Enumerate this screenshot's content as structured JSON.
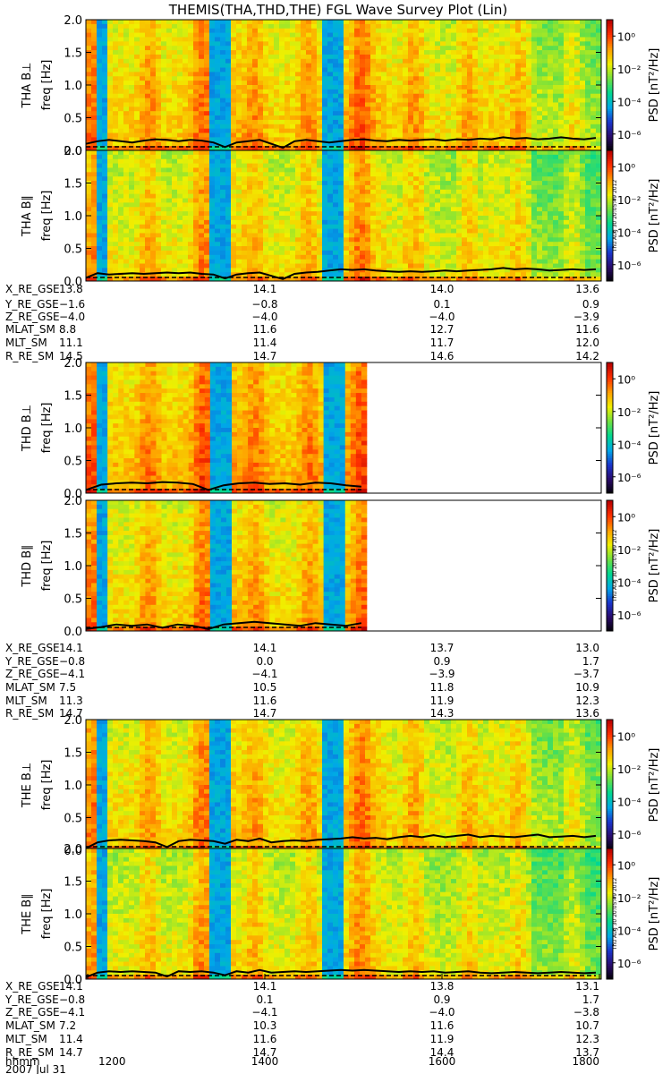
{
  "title": "THEMIS(THA,THD,THE) FGL Wave Survey Plot (Lin)",
  "chart_data": {
    "type": "heatmap",
    "title": "THEMIS(THA,THD,THE) FGL Wave Survey Plot (Lin)",
    "ylim": [
      0,
      2.0
    ],
    "y_ticks": [
      "0.0",
      "0.5",
      "1.0",
      "1.5",
      "2.0"
    ],
    "colorbar": {
      "label": "PSD [nT²/Hz]",
      "ticks": [
        "10⁰",
        "10⁻²",
        "10⁻⁴",
        "10⁻⁶"
      ],
      "tick_exponents": [
        0,
        -2,
        -4,
        -6
      ],
      "range_exponents": [
        -7,
        1
      ],
      "colors": [
        "#000000",
        "#2a0a6a",
        "#1a33cc",
        "#00a8e8",
        "#00d890",
        "#70e040",
        "#f0f000",
        "#ffa000",
        "#ff3000",
        "#b80000"
      ]
    },
    "time_axis": {
      "ticks": [
        "1200",
        "1400",
        "1600",
        "1800"
      ],
      "label": "hhmm",
      "date": "2007 Jul 31"
    },
    "stamp": "Thu Aug 30 20:05:49 2012",
    "panels": [
      {
        "probe": "THA",
        "component": "B⊥",
        "ylabel": "freq [Hz]",
        "name": "THA B⊥",
        "cover": [
          0.0,
          1.0
        ],
        "mean_level": -1.2,
        "trace": [
          0.1,
          0.14,
          0.16,
          0.14,
          0.12,
          0.15,
          0.17,
          0.16,
          0.14,
          0.16,
          0.15,
          0.12,
          0.05,
          0.12,
          0.14,
          0.16,
          0.1,
          0.04,
          0.14,
          0.16,
          0.14,
          0.12,
          0.14,
          0.16,
          0.17,
          0.15,
          0.14,
          0.16,
          0.15,
          0.16,
          0.17,
          0.15,
          0.17,
          0.16,
          0.18,
          0.17,
          0.2,
          0.18,
          0.19,
          0.17,
          0.18,
          0.2,
          0.18,
          0.17,
          0.19
        ]
      },
      {
        "probe": "THA",
        "component": "B∥",
        "ylabel": "freq [Hz]",
        "name": "THA B∥",
        "cover": [
          0.0,
          1.0
        ],
        "mean_level": -1.5,
        "trace": [
          0.05,
          0.12,
          0.1,
          0.11,
          0.12,
          0.11,
          0.12,
          0.13,
          0.12,
          0.13,
          0.11,
          0.1,
          0.04,
          0.1,
          0.12,
          0.13,
          0.08,
          0.03,
          0.11,
          0.13,
          0.14,
          0.16,
          0.18,
          0.17,
          0.18,
          0.16,
          0.15,
          0.14,
          0.15,
          0.14,
          0.15,
          0.16,
          0.15,
          0.16,
          0.17,
          0.18,
          0.2,
          0.18,
          0.19,
          0.18,
          0.16,
          0.17,
          0.18,
          0.17,
          0.18
        ]
      },
      {
        "probe": "THD",
        "component": "B⊥",
        "ylabel": "freq [Hz]",
        "name": "THD B⊥",
        "cover": [
          0.0,
          0.545
        ],
        "mean_level": -1.0,
        "trace": [
          0.05,
          0.13,
          0.15,
          0.16,
          0.15,
          0.17,
          0.16,
          0.14,
          0.05,
          0.12,
          0.15,
          0.16,
          0.14,
          0.15,
          0.13,
          0.16,
          0.15,
          0.12,
          0.1
        ]
      },
      {
        "probe": "THD",
        "component": "B∥",
        "ylabel": "freq [Hz]",
        "name": "THD B∥",
        "cover": [
          0.0,
          0.545
        ],
        "mean_level": -1.3,
        "trace": [
          0.03,
          0.06,
          0.1,
          0.08,
          0.1,
          0.05,
          0.1,
          0.08,
          0.03,
          0.1,
          0.12,
          0.14,
          0.12,
          0.1,
          0.08,
          0.12,
          0.1,
          0.08,
          0.12
        ]
      },
      {
        "probe": "THE",
        "component": "B⊥",
        "ylabel": "freq [Hz]",
        "name": "THE B⊥",
        "cover": [
          0.0,
          1.0
        ],
        "mean_level": -1.3,
        "trace": [
          0.03,
          0.12,
          0.15,
          0.16,
          0.15,
          0.14,
          0.12,
          0.05,
          0.14,
          0.16,
          0.15,
          0.14,
          0.1,
          0.16,
          0.14,
          0.18,
          0.12,
          0.14,
          0.15,
          0.14,
          0.16,
          0.17,
          0.18,
          0.2,
          0.18,
          0.19,
          0.17,
          0.2,
          0.22,
          0.2,
          0.23,
          0.2,
          0.22,
          0.24,
          0.2,
          0.22,
          0.21,
          0.2,
          0.22,
          0.24,
          0.2,
          0.21,
          0.22,
          0.2,
          0.22
        ]
      },
      {
        "probe": "THE",
        "component": "B∥",
        "ylabel": "freq [Hz]",
        "name": "THE B∥",
        "cover": [
          0.0,
          1.0
        ],
        "mean_level": -1.6,
        "trace": [
          0.03,
          0.1,
          0.12,
          0.11,
          0.12,
          0.11,
          0.1,
          0.04,
          0.12,
          0.11,
          0.12,
          0.1,
          0.06,
          0.12,
          0.1,
          0.14,
          0.1,
          0.11,
          0.12,
          0.11,
          0.12,
          0.13,
          0.14,
          0.13,
          0.14,
          0.13,
          0.12,
          0.11,
          0.12,
          0.11,
          0.12,
          0.1,
          0.11,
          0.12,
          0.1,
          0.09,
          0.1,
          0.11,
          0.1,
          0.09,
          0.1,
          0.11,
          0.1,
          0.09,
          0.1
        ]
      }
    ],
    "ephemeris": [
      {
        "probe": "THA",
        "rows": [
          {
            "label": "X_RE_GSE",
            "values": [
              "13.8",
              "14.1",
              "14.0",
              "13.6"
            ]
          },
          {
            "label": "Y_RE_GSE",
            "values": [
              "−1.6",
              "−0.8",
              "0.1",
              "0.9"
            ]
          },
          {
            "label": "Z_RE_GSE",
            "values": [
              "−4.0",
              "−4.0",
              "−4.0",
              "−3.9"
            ]
          },
          {
            "label": "MLAT_SM",
            "values": [
              "8.8",
              "11.6",
              "12.7",
              "11.6"
            ]
          },
          {
            "label": "MLT_SM",
            "values": [
              "11.1",
              "11.4",
              "11.7",
              "12.0"
            ]
          },
          {
            "label": "R_RE_SM",
            "values": [
              "14.5",
              "14.7",
              "14.6",
              "14.2"
            ]
          }
        ]
      },
      {
        "probe": "THD",
        "rows": [
          {
            "label": "X_RE_GSE",
            "values": [
              "14.1",
              "14.1",
              "13.7",
              "13.0"
            ]
          },
          {
            "label": "Y_RE_GSE",
            "values": [
              "−0.8",
              "0.0",
              "0.9",
              "1.7"
            ]
          },
          {
            "label": "Z_RE_GSE",
            "values": [
              "−4.1",
              "−4.1",
              "−3.9",
              "−3.7"
            ]
          },
          {
            "label": "MLAT_SM",
            "values": [
              "7.5",
              "10.5",
              "11.8",
              "10.9"
            ]
          },
          {
            "label": "MLT_SM",
            "values": [
              "11.3",
              "11.6",
              "11.9",
              "12.3"
            ]
          },
          {
            "label": "R_RE_SM",
            "values": [
              "14.7",
              "14.7",
              "14.3",
              "13.6"
            ]
          }
        ]
      },
      {
        "probe": "THE",
        "rows": [
          {
            "label": "X_RE_GSE",
            "values": [
              "14.1",
              "14.1",
              "13.8",
              "13.1"
            ]
          },
          {
            "label": "Y_RE_GSE",
            "values": [
              "−0.8",
              "0.1",
              "0.9",
              "1.7"
            ]
          },
          {
            "label": "Z_RE_GSE",
            "values": [
              "−4.1",
              "−4.1",
              "−4.0",
              "−3.8"
            ]
          },
          {
            "label": "MLAT_SM",
            "values": [
              "7.2",
              "10.3",
              "11.6",
              "10.7"
            ]
          },
          {
            "label": "MLT_SM",
            "values": [
              "11.4",
              "11.6",
              "11.9",
              "12.3"
            ]
          },
          {
            "label": "R_RE_SM",
            "values": [
              "14.7",
              "14.7",
              "14.4",
              "13.7"
            ]
          }
        ]
      }
    ]
  }
}
